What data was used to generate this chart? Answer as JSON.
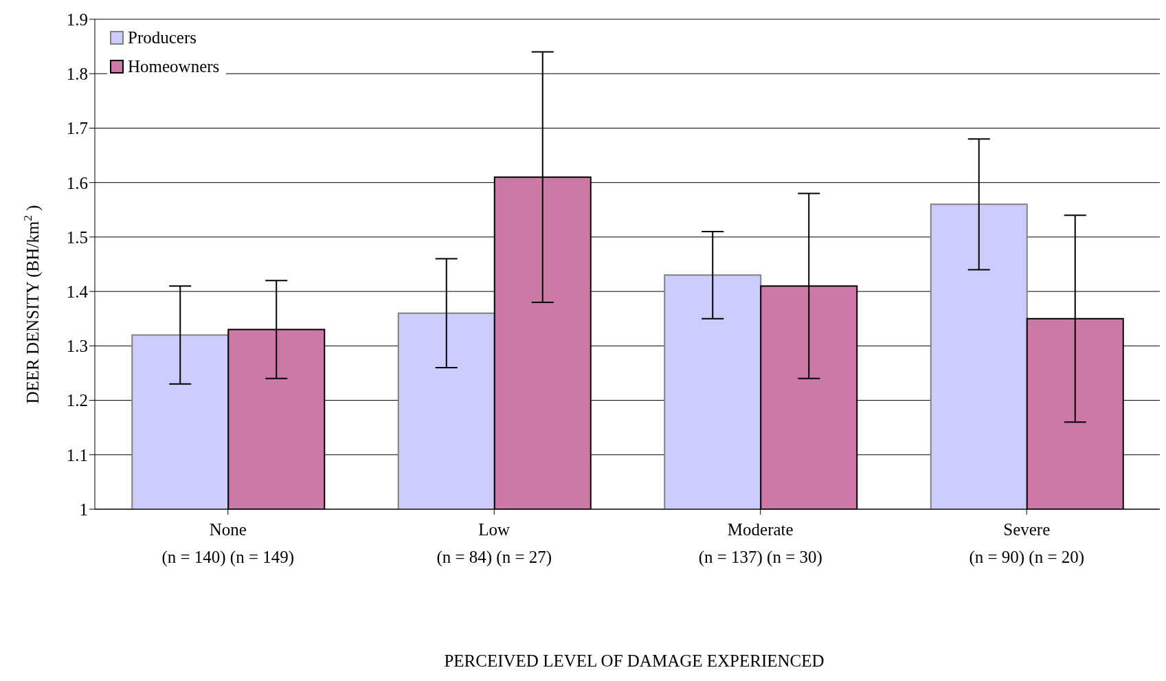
{
  "chart_data": {
    "type": "bar",
    "xlabel": "PERCEIVED LEVEL OF DAMAGE EXPERIENCED",
    "ylabel": "DEER DENSITY (BH/km$^{2}$)",
    "categories": [
      "None\n(n = 140) (n = 149)",
      "Low\n(n = 84) (n = 27)",
      "Moderate\n(n = 137) (n = 30)",
      "Severe\n(n = 90) (n = 20)"
    ],
    "series": [
      {
        "name": "Producers",
        "color": "#ccccff",
        "values": [
          1.32,
          1.36,
          1.43,
          1.56
        ],
        "errors": [
          [
            1.23,
            1.41
          ],
          [
            1.26,
            1.46
          ],
          [
            1.35,
            1.51
          ],
          [
            1.44,
            1.68
          ]
        ]
      },
      {
        "name": "Homeowners",
        "color": "#cc79a7",
        "values": [
          1.33,
          1.61,
          1.41,
          1.35
        ],
        "errors": [
          [
            1.24,
            1.42
          ],
          [
            1.38,
            1.84
          ],
          [
            1.24,
            1.58
          ],
          [
            1.16,
            1.54
          ]
        ]
      }
    ],
    "ylim": [
      1,
      1.9
    ],
    "yticks": [
      1,
      1.1,
      1.2,
      1.3,
      1.4,
      1.5,
      1.6,
      1.7,
      1.8,
      1.9
    ],
    "grid": "y",
    "legend": "top left"
  }
}
